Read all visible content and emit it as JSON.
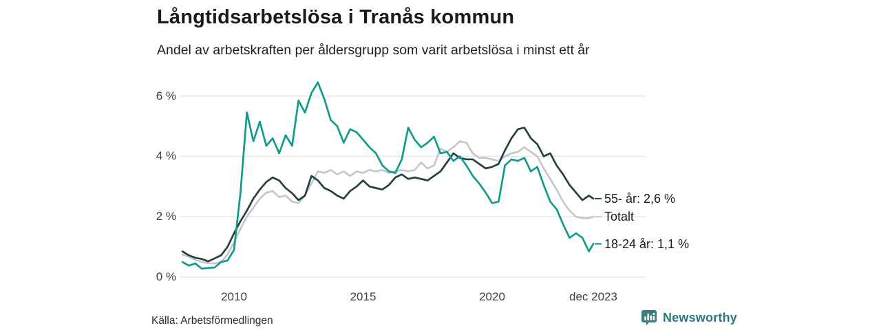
{
  "header": {
    "title": "Långtidsarbetslösa i Tranås kommun",
    "subtitle": "Andel av arbetskraften per åldersgrupp som varit arbetslösa i minst ett år"
  },
  "footer": {
    "source": "Källa: Arbetsförmedlingen",
    "brand": "Newsworthy"
  },
  "colors": {
    "grid": "#e4e4e4",
    "axis_text": "#3d3d3d",
    "label_text": "#1a1a1a",
    "brand_icon": "#35807f",
    "brand_text": "#2c7a7c",
    "series_55": "#24413a",
    "series_total": "#c7c5d2",
    "series_18_24": "#109b8a"
  },
  "chart_data": {
    "type": "line",
    "title": "Långtidsarbetslösa i Tranås kommun",
    "subtitle": "Andel av arbetskraften per åldersgrupp som varit arbetslösa i minst ett år",
    "unit": "%",
    "grid": "horizontal",
    "legend_position": "end-labels-right",
    "x_range": [
      2008.0,
      2023.92
    ],
    "y_range": [
      0,
      6.6
    ],
    "x_ticks": [
      {
        "t": 2010.0,
        "label": "2010"
      },
      {
        "t": 2015.0,
        "label": "2015"
      },
      {
        "t": 2020.0,
        "label": "2020"
      },
      {
        "t": 2023.92,
        "label": "dec 2023"
      }
    ],
    "y_ticks": [
      {
        "v": 0,
        "label": "0 %"
      },
      {
        "v": 2,
        "label": "2 %"
      },
      {
        "v": 4,
        "label": "4 %"
      },
      {
        "v": 6,
        "label": "6 %"
      }
    ],
    "x": [
      2008.0,
      2008.25,
      2008.5,
      2008.75,
      2009.0,
      2009.25,
      2009.5,
      2009.75,
      2010.0,
      2010.25,
      2010.5,
      2010.75,
      2011.0,
      2011.25,
      2011.5,
      2011.75,
      2012.0,
      2012.25,
      2012.5,
      2012.75,
      2013.0,
      2013.25,
      2013.5,
      2013.75,
      2014.0,
      2014.25,
      2014.5,
      2014.75,
      2015.0,
      2015.25,
      2015.5,
      2015.75,
      2016.0,
      2016.25,
      2016.5,
      2016.75,
      2017.0,
      2017.25,
      2017.5,
      2017.75,
      2018.0,
      2018.25,
      2018.5,
      2018.75,
      2019.0,
      2019.25,
      2019.5,
      2019.75,
      2020.0,
      2020.25,
      2020.5,
      2020.75,
      2021.0,
      2021.25,
      2021.5,
      2021.75,
      2022.0,
      2022.25,
      2022.5,
      2022.75,
      2023.0,
      2023.25,
      2023.5,
      2023.75,
      2023.92
    ],
    "series": [
      {
        "name": "55- år",
        "end_label": "55- år: 2,6 %",
        "end_value": 2.6,
        "color": "#24413a",
        "z": 2,
        "values": [
          0.85,
          0.72,
          0.64,
          0.6,
          0.52,
          0.62,
          0.72,
          1.0,
          1.45,
          1.85,
          2.2,
          2.6,
          2.9,
          3.15,
          3.3,
          3.2,
          2.95,
          2.78,
          2.55,
          2.7,
          3.35,
          3.2,
          2.95,
          2.85,
          2.7,
          2.6,
          2.85,
          3.0,
          3.2,
          3.0,
          2.95,
          2.9,
          3.05,
          3.3,
          3.4,
          3.25,
          3.3,
          3.25,
          3.2,
          3.35,
          3.5,
          3.8,
          4.1,
          3.95,
          3.9,
          3.9,
          3.75,
          3.6,
          3.65,
          3.75,
          4.2,
          4.6,
          4.9,
          4.95,
          4.6,
          4.4,
          4.0,
          4.1,
          3.7,
          3.4,
          3.05,
          2.8,
          2.55,
          2.7,
          2.6
        ]
      },
      {
        "name": "Totalt",
        "end_label": "Totalt",
        "end_value": 2.0,
        "color": "#c7c5d2",
        "z": 1,
        "values": [
          0.75,
          0.67,
          0.57,
          0.5,
          0.46,
          0.45,
          0.5,
          0.75,
          1.15,
          1.6,
          2.0,
          2.3,
          2.6,
          2.8,
          2.85,
          2.65,
          2.7,
          2.5,
          2.45,
          2.7,
          3.1,
          3.5,
          3.45,
          3.55,
          3.4,
          3.5,
          3.35,
          3.5,
          3.45,
          3.55,
          3.5,
          3.55,
          3.45,
          3.5,
          3.55,
          3.5,
          3.55,
          3.8,
          3.6,
          3.7,
          4.25,
          4.15,
          4.3,
          4.5,
          4.45,
          4.1,
          3.95,
          3.95,
          3.9,
          3.85,
          4.0,
          4.1,
          4.15,
          4.3,
          4.15,
          4.0,
          3.6,
          3.25,
          2.9,
          2.5,
          2.2,
          2.0,
          1.95,
          1.95,
          2.0
        ]
      },
      {
        "name": "18-24 år",
        "end_label": "18-24 år: 1,1 %",
        "end_value": 1.1,
        "color": "#109b8a",
        "z": 3,
        "values": [
          0.5,
          0.38,
          0.45,
          0.28,
          0.3,
          0.32,
          0.5,
          0.55,
          0.9,
          2.8,
          5.45,
          4.5,
          5.15,
          4.35,
          4.6,
          4.1,
          4.7,
          4.35,
          5.85,
          5.45,
          6.1,
          6.45,
          5.9,
          5.2,
          5.0,
          4.45,
          4.9,
          4.8,
          4.55,
          4.3,
          4.1,
          3.7,
          3.5,
          3.45,
          3.9,
          4.95,
          4.55,
          4.3,
          4.45,
          4.65,
          4.1,
          4.15,
          3.85,
          4.0,
          3.7,
          3.35,
          3.1,
          2.8,
          2.45,
          2.5,
          3.7,
          3.9,
          3.85,
          3.95,
          3.5,
          3.65,
          3.05,
          2.5,
          2.25,
          1.75,
          1.3,
          1.45,
          1.3,
          0.85,
          1.1
        ]
      }
    ]
  }
}
